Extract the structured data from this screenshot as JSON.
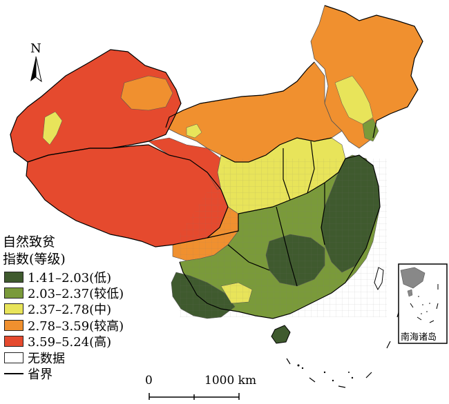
{
  "legend": {
    "title_line1": "自然致贫",
    "title_line2": "指数(等级)",
    "classes": [
      {
        "label": "1.41–2.03(低)",
        "color": "#3f5a2e"
      },
      {
        "label": "2.03–2.37(较低)",
        "color": "#7a9a3a"
      },
      {
        "label": "2.37–2.78(中)",
        "color": "#e8e45a"
      },
      {
        "label": "2.78–3.59(较高)",
        "color": "#f0902f"
      },
      {
        "label": "3.59–5.24(高)",
        "color": "#e54a2e"
      }
    ],
    "no_data_label": "无数据",
    "boundary_label": "省界"
  },
  "scale_bar": {
    "start": "0",
    "end": "1000 km"
  },
  "north_arrow": {
    "label": "N"
  },
  "inset": {
    "label": "南海诸岛"
  }
}
